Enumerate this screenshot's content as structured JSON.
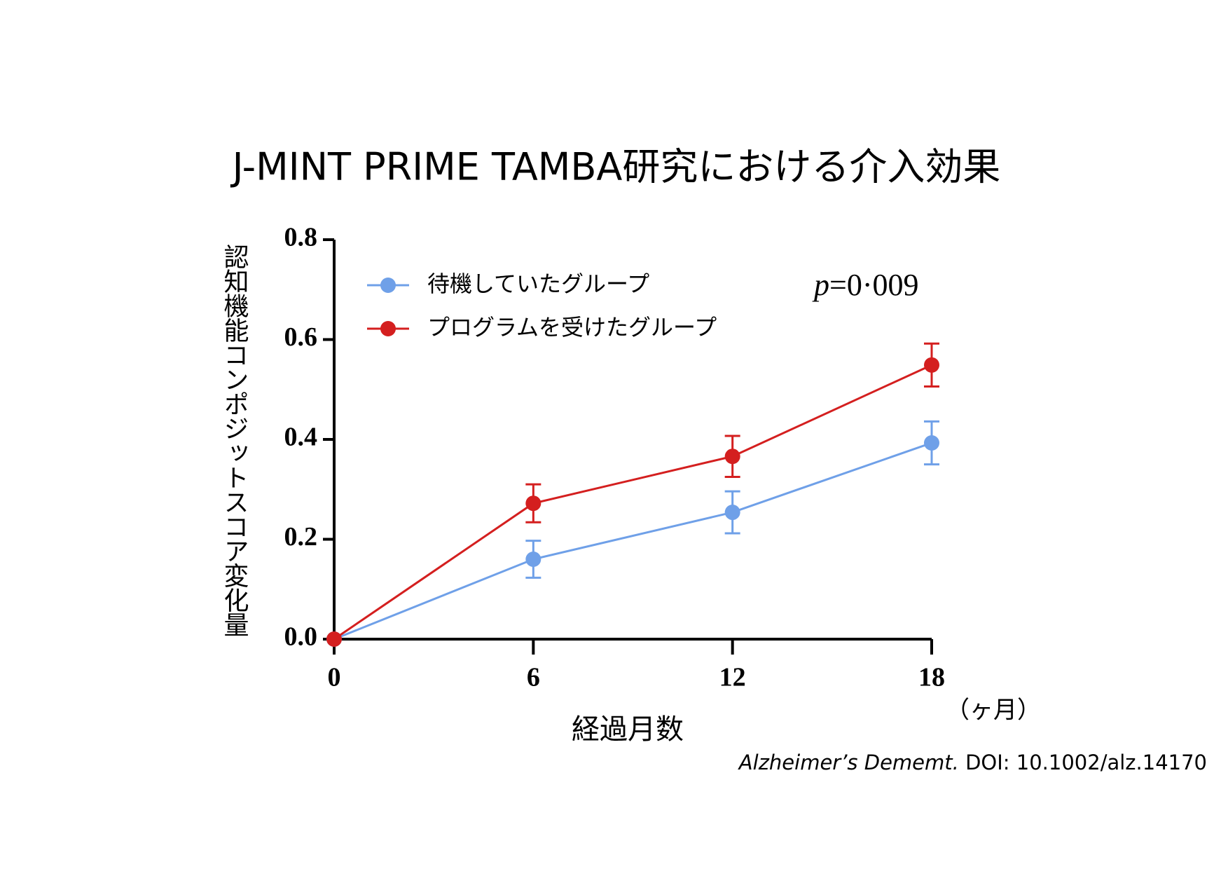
{
  "chart_data": {
    "type": "line",
    "title": "J-MINT PRIME TAMBA研究における介入効果",
    "y_label": "認知機能コンポジットスコア変化量",
    "x_label": "経過月数",
    "x_unit": "（ヶ月）",
    "annotation_symbol": "p",
    "annotation_value": "=0·009",
    "source_journal": "Alzheimer’s Dememt.",
    "source_doi": "DOI: 10.1002/alz.14170",
    "x": [
      0,
      6,
      12,
      18
    ],
    "xlim": [
      0,
      18
    ],
    "xticks": [
      0,
      6,
      12,
      18
    ],
    "ylim": [
      0,
      0.8
    ],
    "yticks": [
      {
        "value": 0,
        "label": "0.0"
      },
      0.2,
      0.4,
      0.6,
      0.8
    ],
    "legend": "upper-left",
    "series": [
      {
        "name": "待機していたグループ",
        "color": "#6fa0e8",
        "values": [
          0,
          0.16,
          0.254,
          0.393
        ],
        "errors": [
          null,
          0.037,
          0.042,
          0.043
        ]
      },
      {
        "name": "プログラムを受けたグループ",
        "color": "#d41f1f",
        "values": [
          0,
          0.272,
          0.366,
          0.549
        ],
        "errors": [
          null,
          0.038,
          0.041,
          0.043
        ]
      }
    ]
  }
}
